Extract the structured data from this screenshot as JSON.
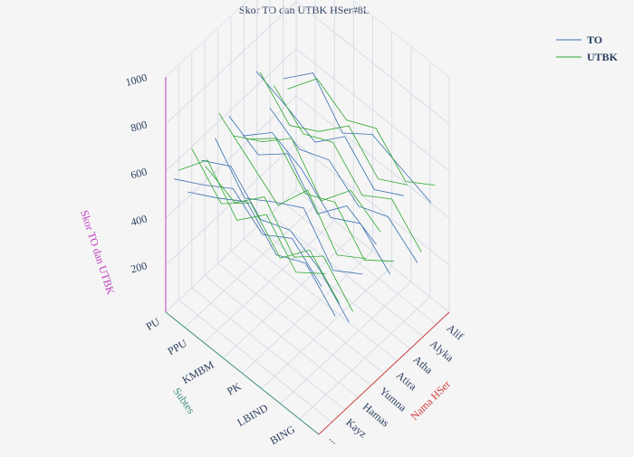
{
  "chart_data": {
    "type": "line3d",
    "title": "Skor TO dan UTBK HSer#8L",
    "axes": {
      "z_label": "Skor TO dan UTBK",
      "y_label": "Subtes",
      "x_label": "Nama HSer",
      "z_ticks": [
        200,
        400,
        600,
        800,
        1000
      ],
      "z_range": [
        0,
        1000
      ],
      "subtes_ticks": [
        "PU",
        "PPU",
        "KMBM",
        "PK",
        "LBIND",
        "BING"
      ],
      "nama_ticks": [
        "Alif",
        "Alyka",
        "Atha",
        "Atira",
        "Yumna",
        "Hamas",
        "Kayz",
        "..."
      ]
    },
    "grid": true,
    "legend_position": "top-right",
    "colors": {
      "TO": "#3a6fb0",
      "UTBK": "#2ea82e",
      "z_axis": "#c040c0",
      "y_axis": "#3f8f80",
      "x_axis": "#d04040",
      "text": "#2a3f5f"
    },
    "series": [
      {
        "name": "TO",
        "lines": [
          [
            560,
            680,
            610,
            720,
            650,
            590
          ],
          [
            380,
            520,
            470,
            610,
            540,
            480
          ],
          [
            300,
            440,
            520,
            480,
            620,
            560
          ],
          [
            450,
            380,
            560,
            500,
            430,
            600
          ],
          [
            520,
            600,
            480,
            650,
            560,
            640
          ],
          [
            340,
            470,
            410,
            530,
            600,
            500
          ],
          [
            620,
            560,
            700,
            590,
            660,
            720
          ],
          [
            280,
            390,
            350,
            460,
            420,
            510
          ],
          [
            480,
            540,
            600,
            520,
            690,
            580
          ]
        ]
      },
      {
        "name": "UTBK",
        "lines": [
          [
            600,
            520,
            680,
            570,
            740,
            610
          ],
          [
            420,
            560,
            440,
            590,
            500,
            650
          ],
          [
            330,
            480,
            390,
            560,
            450,
            520
          ],
          [
            500,
            430,
            620,
            470,
            580,
            690
          ],
          [
            560,
            650,
            520,
            700,
            600,
            540
          ],
          [
            380,
            300,
            460,
            410,
            560,
            470
          ],
          [
            650,
            590,
            730,
            620,
            560,
            700
          ],
          [
            310,
            450,
            380,
            520,
            470,
            590
          ],
          [
            540,
            470,
            610,
            560,
            650,
            520
          ]
        ]
      }
    ]
  },
  "legend": [
    {
      "label": "TO",
      "color": "#3a6fb0"
    },
    {
      "label": "UTBK",
      "color": "#2ea82e"
    }
  ]
}
